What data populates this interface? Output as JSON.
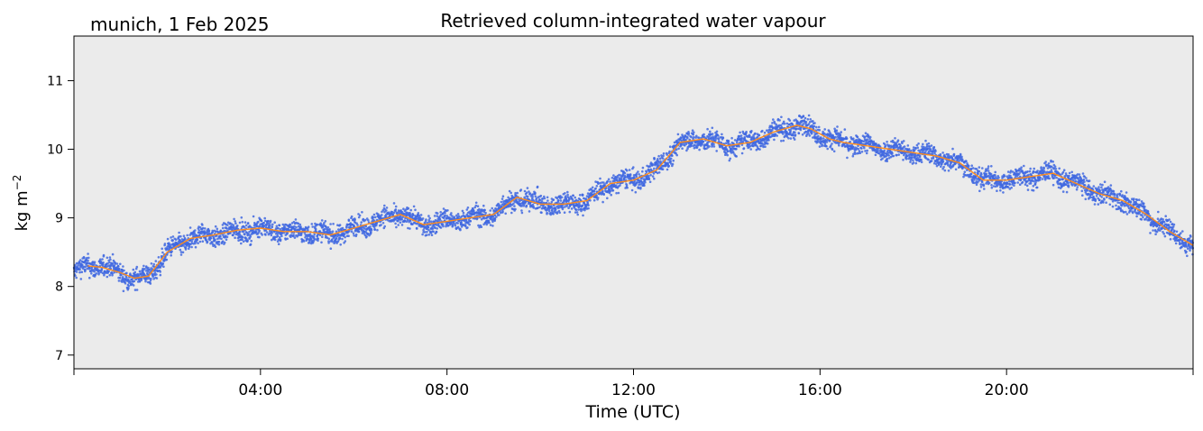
{
  "chart_data": {
    "type": "scatter",
    "title": "Retrieved column-integrated water vapour",
    "subtitle": "munich, 1 Feb 2025",
    "xlabel": "Time (UTC)",
    "ylabel": "kg m",
    "ylabel_superscript": "−2",
    "x_unit": "hours UTC",
    "xlim": [
      0,
      24
    ],
    "ylim": [
      6.8,
      11.65
    ],
    "x_ticks": [
      {
        "value": 0,
        "label": ""
      },
      {
        "value": 4,
        "label": "04:00"
      },
      {
        "value": 8,
        "label": "08:00"
      },
      {
        "value": 12,
        "label": "12:00"
      },
      {
        "value": 16,
        "label": "16:00"
      },
      {
        "value": 20,
        "label": "20:00"
      },
      {
        "value": 24,
        "label": ""
      }
    ],
    "y_ticks": [
      {
        "value": 7,
        "label": "7"
      },
      {
        "value": 8,
        "label": "8"
      },
      {
        "value": 9,
        "label": "9"
      },
      {
        "value": 10,
        "label": "10"
      },
      {
        "value": 11,
        "label": "11"
      }
    ],
    "grid": false,
    "legend": "none",
    "background_color": "#ebebeb",
    "series": [
      {
        "kind": "scatter",
        "color": "#4169e1",
        "spread": 0.13,
        "x": [
          0.0,
          0.3,
          0.6,
          1.0,
          1.3,
          1.6,
          2.0,
          2.5,
          3.0,
          3.5,
          4.0,
          4.5,
          5.0,
          5.5,
          6.0,
          6.5,
          7.0,
          7.5,
          8.0,
          8.5,
          9.0,
          9.5,
          10.0,
          10.5,
          11.0,
          11.5,
          12.0,
          12.5,
          13.0,
          13.5,
          14.0,
          14.5,
          15.0,
          15.5,
          15.8,
          16.2,
          16.5,
          17.0,
          17.5,
          18.0,
          18.5,
          19.0,
          19.5,
          20.0,
          20.5,
          21.0,
          21.5,
          22.0,
          22.5,
          23.0,
          23.5,
          24.0
        ],
        "y": [
          8.2,
          8.3,
          8.3,
          8.2,
          8.1,
          8.15,
          8.5,
          8.7,
          8.75,
          8.8,
          8.85,
          8.8,
          8.8,
          8.75,
          8.85,
          8.95,
          9.05,
          8.9,
          8.95,
          9.0,
          9.05,
          9.3,
          9.2,
          9.2,
          9.25,
          9.5,
          9.55,
          9.7,
          10.1,
          10.15,
          10.05,
          10.1,
          10.25,
          10.35,
          10.3,
          10.15,
          10.1,
          10.05,
          10.0,
          9.95,
          9.9,
          9.8,
          9.55,
          9.55,
          9.6,
          9.65,
          9.5,
          9.35,
          9.25,
          9.05,
          8.8,
          8.6
        ]
      },
      {
        "kind": "line",
        "color": "#ff8c1a",
        "x": [
          0.3,
          0.6,
          1.0,
          1.3,
          1.6,
          2.0,
          2.5,
          3.0,
          3.5,
          4.0,
          4.5,
          5.0,
          5.5,
          6.0,
          6.5,
          7.0,
          7.5,
          8.0,
          8.5,
          9.0,
          9.5,
          10.0,
          10.5,
          11.0,
          11.5,
          12.0,
          12.5,
          13.0,
          13.5,
          14.0,
          14.5,
          15.0,
          15.5,
          15.8,
          16.2,
          16.5,
          17.0,
          17.5,
          18.0,
          18.5,
          19.0,
          19.5,
          20.0,
          20.5,
          21.0,
          21.5,
          22.0,
          22.5,
          23.0,
          23.5,
          24.0
        ],
        "y": [
          8.3,
          8.28,
          8.2,
          8.12,
          8.15,
          8.5,
          8.7,
          8.75,
          8.82,
          8.85,
          8.8,
          8.8,
          8.75,
          8.85,
          8.95,
          9.05,
          8.9,
          8.95,
          9.0,
          9.05,
          9.3,
          9.2,
          9.2,
          9.25,
          9.5,
          9.55,
          9.7,
          10.1,
          10.15,
          10.05,
          10.1,
          10.25,
          10.35,
          10.3,
          10.15,
          10.1,
          10.05,
          10.0,
          9.95,
          9.9,
          9.8,
          9.55,
          9.55,
          9.6,
          9.65,
          9.5,
          9.35,
          9.25,
          9.05,
          8.8,
          8.6
        ]
      }
    ]
  }
}
